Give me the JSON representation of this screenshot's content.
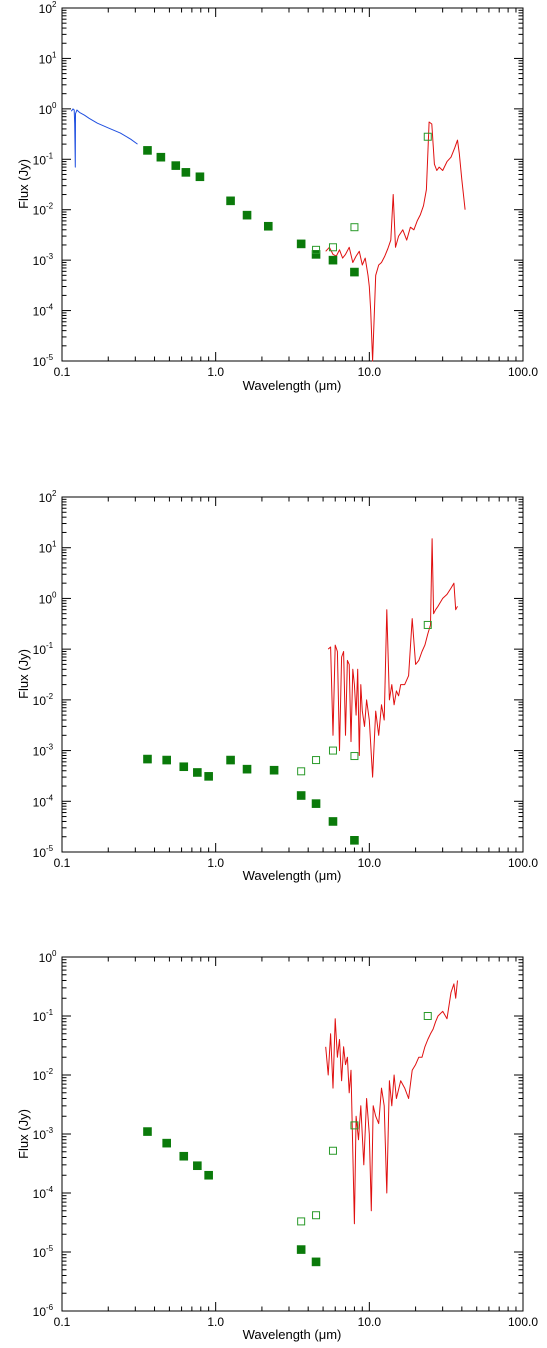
{
  "chart_data": [
    {
      "type": "scatter",
      "xlabel": "Wavelength (μm)",
      "ylabel": "Flux (Jy)",
      "xscale": "log",
      "yscale": "log",
      "xlim": [
        0.1,
        100.0
      ],
      "ylim": [
        1e-05,
        100
      ],
      "x_ticks": [
        "0.1",
        "1.0",
        "10.0",
        "100.0"
      ],
      "y_ticks": [
        {
          "base": "10",
          "exp": "-5"
        },
        {
          "base": "10",
          "exp": "-4"
        },
        {
          "base": "10",
          "exp": "-3"
        },
        {
          "base": "10",
          "exp": "-2"
        },
        {
          "base": "10",
          "exp": "-1"
        },
        {
          "base": "10",
          "exp": "0"
        },
        {
          "base": "10",
          "exp": "1"
        },
        {
          "base": "10",
          "exp": "2"
        }
      ],
      "colors": {
        "filled": "#0a7a0a",
        "open": "#2a9a2a",
        "uv_spectrum": "#1f4fe0",
        "ir_spectrum": "#e01010"
      },
      "series": [
        {
          "marker": "filled-square",
          "x": [
            0.36,
            0.44,
            0.55,
            0.64,
            0.79,
            1.25,
            1.6,
            2.2,
            3.6,
            4.5,
            5.8,
            8.0
          ],
          "y": [
            0.15,
            0.11,
            0.075,
            0.055,
            0.045,
            0.015,
            0.0078,
            0.0047,
            0.0021,
            0.0013,
            0.001,
            0.00058
          ]
        },
        {
          "marker": "open-square",
          "x": [
            4.5,
            5.8,
            8.0,
            24.0
          ],
          "y": [
            0.0016,
            0.0018,
            0.0045,
            0.28
          ]
        },
        {
          "marker": "uv-spectrum-line",
          "x": [
            0.115,
            0.118,
            0.12,
            0.121,
            0.122,
            0.1225,
            0.125,
            0.13,
            0.14,
            0.15,
            0.17,
            0.2,
            0.24,
            0.28,
            0.31
          ],
          "y": [
            0.9,
            1.0,
            0.95,
            0.5,
            0.07,
            0.8,
            0.95,
            0.85,
            0.75,
            0.65,
            0.52,
            0.42,
            0.33,
            0.25,
            0.2
          ]
        },
        {
          "marker": "ir-spectrum-line",
          "x": [
            5.2,
            5.5,
            5.8,
            6.1,
            6.4,
            6.7,
            7.0,
            7.4,
            7.8,
            8.2,
            8.6,
            9.0,
            9.4,
            9.8,
            10.0,
            10.2,
            10.5,
            11.0,
            11.5,
            12.0,
            12.6,
            13.2,
            13.8,
            14.3,
            14.8,
            15.5,
            16.5,
            17.5,
            18.5,
            19.5,
            20.5,
            21.5,
            22.5,
            23.5,
            24.5,
            25.5,
            26.5,
            27.5,
            28.5,
            30.0,
            32.0,
            34.0,
            36.0,
            37.5,
            38.5,
            40.0,
            42.0
          ],
          "y": [
            0.0015,
            0.0018,
            0.0013,
            0.0012,
            0.0016,
            0.0011,
            0.0013,
            0.0018,
            0.0009,
            0.0012,
            0.0015,
            0.0008,
            0.0011,
            0.0005,
            0.0003,
            0.0001,
            5e-06,
            0.0005,
            0.0008,
            0.0009,
            0.0012,
            0.0017,
            0.0025,
            0.02,
            0.0018,
            0.003,
            0.004,
            0.0025,
            0.0045,
            0.004,
            0.006,
            0.008,
            0.012,
            0.025,
            0.55,
            0.5,
            0.08,
            0.06,
            0.07,
            0.06,
            0.09,
            0.11,
            0.17,
            0.24,
            0.13,
            0.04,
            0.01
          ]
        }
      ]
    },
    {
      "type": "scatter",
      "xlabel": "Wavelength (μm)",
      "ylabel": "Flux (Jy)",
      "xscale": "log",
      "yscale": "log",
      "xlim": [
        0.1,
        100.0
      ],
      "ylim": [
        1e-05,
        100
      ],
      "x_ticks": [
        "0.1",
        "1.0",
        "10.0",
        "100.0"
      ],
      "y_ticks": [
        {
          "base": "10",
          "exp": "-5"
        },
        {
          "base": "10",
          "exp": "-4"
        },
        {
          "base": "10",
          "exp": "-3"
        },
        {
          "base": "10",
          "exp": "-2"
        },
        {
          "base": "10",
          "exp": "-1"
        },
        {
          "base": "10",
          "exp": "0"
        },
        {
          "base": "10",
          "exp": "1"
        },
        {
          "base": "10",
          "exp": "2"
        }
      ],
      "colors": {
        "filled": "#0a7a0a",
        "open": "#2a9a2a",
        "ir_spectrum": "#e01010"
      },
      "series": [
        {
          "marker": "filled-square",
          "x": [
            0.36,
            0.48,
            0.62,
            0.76,
            0.9,
            1.25,
            1.6,
            2.4,
            3.6,
            4.5,
            5.8,
            8.0
          ],
          "y": [
            0.00068,
            0.00065,
            0.00048,
            0.00037,
            0.00031,
            0.00065,
            0.00043,
            0.00041,
            0.00013,
            9e-05,
            4e-05,
            1.7e-05
          ]
        },
        {
          "marker": "open-square",
          "x": [
            3.6,
            4.5,
            5.8,
            8.0,
            24.0
          ],
          "y": [
            0.00039,
            0.00065,
            0.001,
            0.00078,
            0.3
          ]
        },
        {
          "marker": "ir-spectrum-line",
          "x": [
            5.4,
            5.6,
            5.8,
            6.0,
            6.2,
            6.4,
            6.6,
            6.8,
            7.0,
            7.2,
            7.4,
            7.6,
            7.8,
            8.0,
            8.2,
            8.4,
            8.6,
            8.8,
            9.0,
            9.3,
            9.6,
            10.0,
            10.5,
            11.0,
            11.5,
            12.0,
            12.5,
            13.0,
            13.5,
            14.0,
            14.5,
            15.0,
            15.5,
            16.0,
            17.0,
            18.0,
            19.0,
            20.0,
            21.0,
            22.0,
            23.0,
            24.0,
            25.0,
            25.6,
            26.2,
            27.0,
            28.0,
            30.0,
            32.0,
            34.0,
            35.5,
            36.5,
            37.5
          ],
          "y": [
            0.1,
            0.11,
            0.002,
            0.12,
            0.09,
            0.001,
            0.07,
            0.09,
            0.002,
            0.06,
            0.05,
            0.0015,
            0.04,
            0.02,
            0.005,
            0.04,
            0.0008,
            0.02,
            0.006,
            0.003,
            0.01,
            0.004,
            0.0003,
            0.006,
            0.002,
            0.008,
            0.004,
            0.6,
            0.01,
            0.02,
            0.008,
            0.015,
            0.012,
            0.02,
            0.02,
            0.03,
            0.4,
            0.05,
            0.06,
            0.09,
            0.12,
            0.2,
            0.3,
            15.0,
            0.5,
            0.6,
            0.7,
            1.0,
            1.2,
            1.6,
            2.0,
            0.6,
            0.7
          ]
        }
      ]
    },
    {
      "type": "scatter",
      "xlabel": "Wavelength (μm)",
      "ylabel": "Flux (Jy)",
      "xscale": "log",
      "yscale": "log",
      "xlim": [
        0.1,
        100.0
      ],
      "ylim": [
        1e-06,
        1
      ],
      "x_ticks": [
        "0.1",
        "1.0",
        "10.0",
        "100.0"
      ],
      "y_ticks": [
        {
          "base": "10",
          "exp": "-6"
        },
        {
          "base": "10",
          "exp": "-5"
        },
        {
          "base": "10",
          "exp": "-4"
        },
        {
          "base": "10",
          "exp": "-3"
        },
        {
          "base": "10",
          "exp": "-2"
        },
        {
          "base": "10",
          "exp": "-1"
        },
        {
          "base": "10",
          "exp": "0"
        }
      ],
      "colors": {
        "filled": "#0a7a0a",
        "open": "#2a9a2a",
        "ir_spectrum": "#e01010"
      },
      "series": [
        {
          "marker": "filled-square",
          "x": [
            0.36,
            0.48,
            0.62,
            0.76,
            0.9,
            3.6,
            4.5
          ],
          "y": [
            0.0011,
            0.0007,
            0.00042,
            0.00029,
            0.0002,
            1.1e-05,
            6.8e-06
          ]
        },
        {
          "marker": "open-square",
          "x": [
            3.6,
            4.5,
            5.8,
            8.0,
            24.0
          ],
          "y": [
            3.3e-05,
            4.2e-05,
            0.00052,
            0.0014,
            0.1
          ]
        },
        {
          "marker": "ir-spectrum-line",
          "x": [
            5.2,
            5.4,
            5.6,
            5.8,
            6.0,
            6.2,
            6.4,
            6.6,
            6.8,
            7.0,
            7.2,
            7.4,
            7.6,
            7.8,
            8.0,
            8.2,
            8.5,
            8.8,
            9.2,
            9.6,
            10.0,
            10.3,
            10.6,
            11.0,
            11.5,
            12.0,
            12.5,
            13.0,
            13.5,
            14.0,
            14.5,
            15.0,
            16.0,
            17.0,
            18.0,
            19.0,
            20.0,
            21.0,
            22.0,
            23.0,
            24.0,
            25.0,
            26.0,
            27.0,
            28.0,
            30.0,
            32.0,
            34.0,
            35.5,
            36.5,
            37.5
          ],
          "y": [
            0.03,
            0.01,
            0.05,
            0.006,
            0.09,
            0.02,
            0.04,
            0.008,
            0.03,
            0.015,
            0.02,
            0.005,
            0.012,
            0.0005,
            3e-05,
            0.002,
            0.0008,
            0.003,
            0.0003,
            0.004,
            0.001,
            5e-05,
            0.003,
            0.002,
            0.0015,
            0.006,
            0.003,
            0.0001,
            0.008,
            0.003,
            0.01,
            0.004,
            0.008,
            0.006,
            0.004,
            0.012,
            0.015,
            0.02,
            0.02,
            0.03,
            0.04,
            0.05,
            0.06,
            0.08,
            0.1,
            0.12,
            0.09,
            0.25,
            0.35,
            0.2,
            0.4
          ]
        }
      ]
    }
  ]
}
